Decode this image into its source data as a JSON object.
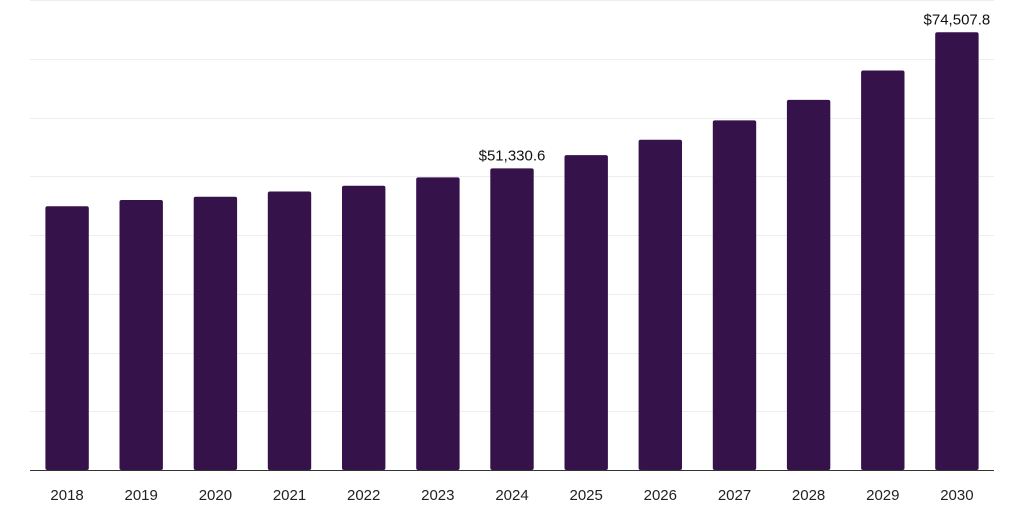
{
  "chart_data": {
    "type": "bar",
    "categories": [
      "2018",
      "2019",
      "2020",
      "2021",
      "2022",
      "2023",
      "2024",
      "2025",
      "2026",
      "2027",
      "2028",
      "2029",
      "2030"
    ],
    "values": [
      44900,
      45950,
      46500,
      47400,
      48400,
      49800,
      51330.6,
      53600,
      56200,
      59500,
      63000,
      68000,
      74507.8
    ],
    "data_labels": [
      {
        "category": "2024",
        "text": "$51,330.6"
      },
      {
        "category": "2030",
        "text": "$74,507.8"
      }
    ],
    "title": "",
    "xlabel": "",
    "ylabel": "",
    "ylim": [
      0,
      80000
    ],
    "grid": true,
    "bar_color": "#36124a"
  }
}
